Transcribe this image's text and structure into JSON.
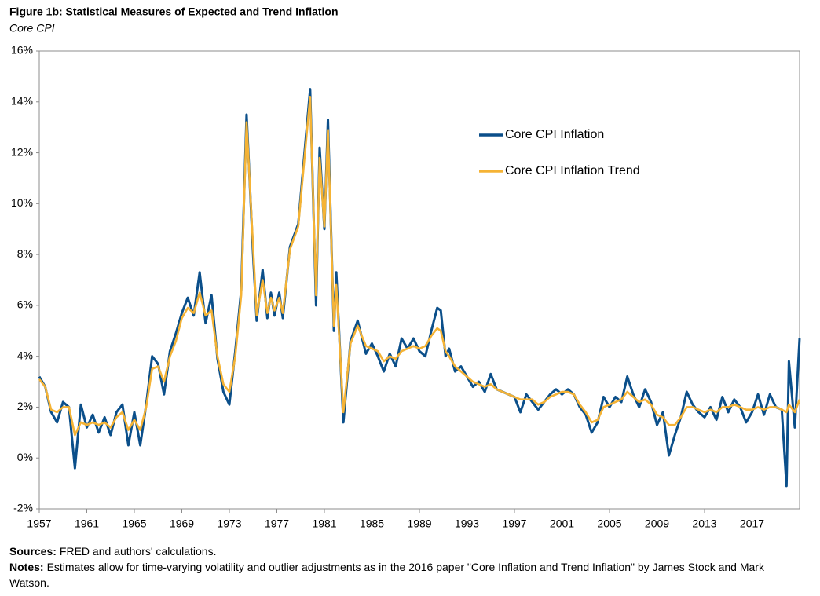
{
  "chart_data": {
    "type": "line",
    "title": "Figure 1b: Statistical Measures of Expected and Trend Inflation",
    "subtitle": "Core CPI",
    "x": [
      1957.0,
      1957.5,
      1958.0,
      1958.5,
      1959.0,
      1959.5,
      1960.0,
      1960.5,
      1961.0,
      1961.5,
      1962.0,
      1962.5,
      1963.0,
      1963.5,
      1964.0,
      1964.5,
      1965.0,
      1965.5,
      1966.0,
      1966.5,
      1967.0,
      1967.5,
      1968.0,
      1968.5,
      1969.0,
      1969.5,
      1970.0,
      1970.5,
      1971.0,
      1971.5,
      1972.0,
      1972.5,
      1973.0,
      1973.5,
      1974.0,
      1974.45,
      1975.0,
      1975.3,
      1975.8,
      1976.2,
      1976.5,
      1976.8,
      1977.2,
      1977.5,
      1978.1,
      1978.8,
      1979.8,
      1980.3,
      1980.6,
      1981.0,
      1981.3,
      1981.8,
      1982.0,
      1982.6,
      1983.2,
      1983.8,
      1984.5,
      1985.0,
      1985.5,
      1986.0,
      1986.5,
      1987.0,
      1987.5,
      1988.0,
      1988.5,
      1989.0,
      1989.5,
      1990.0,
      1990.5,
      1990.8,
      1991.2,
      1991.5,
      1992.0,
      1992.5,
      1993.0,
      1993.5,
      1994.0,
      1994.5,
      1995.0,
      1995.5,
      1996.0,
      1996.5,
      1997.0,
      1997.5,
      1998.0,
      1998.5,
      1999.0,
      1999.5,
      2000.0,
      2000.5,
      2001.0,
      2001.5,
      2002.0,
      2002.5,
      2003.0,
      2003.5,
      2004.0,
      2004.5,
      2005.0,
      2005.5,
      2006.0,
      2006.5,
      2007.0,
      2007.5,
      2008.0,
      2008.5,
      2009.0,
      2009.5,
      2010.0,
      2010.5,
      2011.0,
      2011.5,
      2012.0,
      2012.5,
      2013.0,
      2013.5,
      2014.0,
      2014.5,
      2015.0,
      2015.5,
      2016.0,
      2016.5,
      2017.0,
      2017.5,
      2018.0,
      2018.5,
      2019.0,
      2019.5,
      2019.9,
      2020.1,
      2020.6,
      2021.0
    ],
    "series": [
      {
        "name": "Core CPI Inflation",
        "color": "#0b4f8a",
        "values": [
          3.2,
          2.8,
          1.8,
          1.4,
          2.2,
          2.0,
          -0.4,
          2.1,
          1.2,
          1.7,
          1.0,
          1.6,
          0.9,
          1.8,
          2.1,
          0.5,
          1.8,
          0.5,
          2.1,
          4.0,
          3.7,
          2.5,
          4.2,
          4.9,
          5.7,
          6.3,
          5.6,
          7.3,
          5.3,
          6.4,
          3.9,
          2.6,
          2.1,
          4.2,
          6.6,
          13.5,
          8.0,
          5.4,
          7.4,
          5.5,
          6.5,
          5.6,
          6.5,
          5.5,
          8.3,
          9.2,
          14.5,
          6.0,
          12.2,
          9.0,
          13.3,
          5.0,
          7.3,
          1.4,
          4.6,
          5.4,
          4.1,
          4.5,
          4.0,
          3.4,
          4.1,
          3.6,
          4.7,
          4.3,
          4.7,
          4.2,
          4.0,
          5.0,
          5.9,
          5.8,
          4.0,
          4.3,
          3.4,
          3.6,
          3.2,
          2.8,
          3.0,
          2.6,
          3.3,
          2.7,
          2.6,
          2.5,
          2.4,
          1.8,
          2.5,
          2.2,
          1.9,
          2.2,
          2.5,
          2.7,
          2.5,
          2.7,
          2.5,
          2.0,
          1.7,
          1.0,
          1.4,
          2.4,
          2.0,
          2.4,
          2.2,
          3.2,
          2.5,
          2.0,
          2.7,
          2.2,
          1.3,
          1.8,
          0.1,
          0.9,
          1.6,
          2.6,
          2.1,
          1.8,
          1.6,
          2.0,
          1.5,
          2.4,
          1.8,
          2.3,
          2.0,
          1.4,
          1.8,
          2.5,
          1.7,
          2.5,
          2.0,
          1.9,
          -1.1,
          3.8,
          1.2,
          4.7
        ]
      },
      {
        "name": "Core CPI Inflation Trend",
        "color": "#f5b335",
        "values": [
          3.1,
          2.8,
          1.9,
          1.8,
          2.0,
          2.0,
          0.9,
          1.4,
          1.3,
          1.4,
          1.3,
          1.4,
          1.2,
          1.6,
          1.8,
          1.1,
          1.5,
          1.1,
          2.0,
          3.5,
          3.6,
          3.0,
          4.0,
          4.6,
          5.5,
          5.9,
          5.7,
          6.5,
          5.6,
          5.8,
          4.0,
          2.9,
          2.6,
          4.0,
          6.4,
          13.2,
          8.3,
          5.6,
          7.0,
          5.7,
          6.3,
          5.8,
          6.3,
          5.7,
          8.2,
          9.1,
          14.2,
          6.4,
          11.8,
          9.1,
          12.9,
          5.2,
          6.8,
          1.8,
          4.5,
          5.2,
          4.4,
          4.3,
          4.2,
          3.8,
          4.0,
          3.9,
          4.2,
          4.3,
          4.4,
          4.3,
          4.4,
          4.8,
          5.1,
          5.0,
          4.2,
          4.0,
          3.6,
          3.4,
          3.2,
          3.0,
          2.9,
          2.8,
          2.9,
          2.7,
          2.6,
          2.5,
          2.4,
          2.3,
          2.3,
          2.3,
          2.1,
          2.2,
          2.4,
          2.5,
          2.6,
          2.6,
          2.5,
          2.1,
          1.8,
          1.4,
          1.5,
          2.0,
          2.1,
          2.2,
          2.3,
          2.6,
          2.4,
          2.2,
          2.3,
          2.1,
          1.7,
          1.6,
          1.3,
          1.3,
          1.6,
          2.0,
          2.0,
          1.9,
          1.8,
          1.9,
          1.8,
          2.0,
          2.0,
          2.1,
          2.0,
          1.9,
          1.9,
          2.0,
          1.9,
          2.0,
          2.0,
          1.9,
          1.8,
          2.1,
          1.8,
          2.3
        ]
      }
    ],
    "xlim": [
      1957,
      2021
    ],
    "xticks": [
      1957,
      1961,
      1965,
      1969,
      1973,
      1977,
      1981,
      1985,
      1989,
      1993,
      1997,
      2001,
      2005,
      2009,
      2013,
      2017
    ],
    "ylim": [
      -2,
      16
    ],
    "yticks": [
      {
        "value": -2,
        "label": "-2%"
      },
      {
        "value": 0,
        "label": "0%"
      },
      {
        "value": 2,
        "label": "2%"
      },
      {
        "value": 4,
        "label": "4%"
      },
      {
        "value": 6,
        "label": "6%"
      },
      {
        "value": 8,
        "label": "8%"
      },
      {
        "value": 10,
        "label": "10%"
      },
      {
        "value": 12,
        "label": "12%"
      },
      {
        "value": 14,
        "label": "14%"
      },
      {
        "value": 16,
        "label": "16%"
      }
    ],
    "grid": false,
    "legend": "upper-right",
    "notes": [
      {
        "label": "Sources:",
        "text": "FRED and authors' calculations."
      },
      {
        "label": "Notes:",
        "text": "Estimates allow for time-varying volatility and outlier adjustments as in the 2016  paper \"Core Inflation and Trend Inflation\" by James Stock and Mark Watson."
      }
    ]
  }
}
